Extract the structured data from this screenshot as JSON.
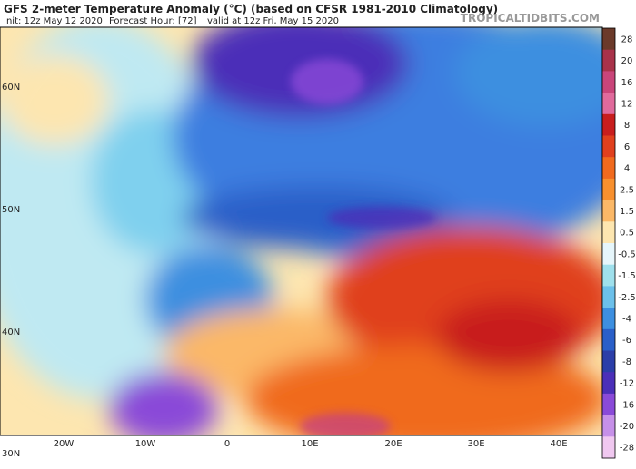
{
  "header": {
    "title": "GFS 2-meter Temperature Anomaly (°C) (based on CFSR 1981-2010 Climatology)",
    "init": "Init: 12z May 12 2020",
    "forecast_hour": "Forecast Hour: [72]",
    "valid": "valid at 12z Fri, May 15 2020",
    "brand": "TROPICALTIDBITS.COM"
  },
  "map": {
    "lat_labels": [
      "60N",
      "50N",
      "40N",
      "30N"
    ],
    "lon_labels": [
      "20W",
      "10W",
      "0",
      "10E",
      "20E",
      "30E",
      "40E"
    ]
  },
  "colorbar": {
    "labels": [
      28,
      20,
      16,
      12,
      8,
      6,
      4,
      2.5,
      1.5,
      0.5,
      -0.5,
      -1.5,
      -2.5,
      -4,
      -6,
      -8,
      -12,
      -16,
      -20,
      -28
    ],
    "colors": [
      "#6b3a2a",
      "#a8324a",
      "#c9457a",
      "#e06a9c",
      "#c81e1e",
      "#e0401e",
      "#f06a1e",
      "#f7902e",
      "#fbb867",
      "#fde6b0",
      "#e6f6fb",
      "#9fe0ec",
      "#6cc0ea",
      "#3d8fe0",
      "#2a5fc8",
      "#2b3ea8",
      "#4b2fb8",
      "#8a4ad8",
      "#c690e8",
      "#f0c8f0"
    ]
  }
}
